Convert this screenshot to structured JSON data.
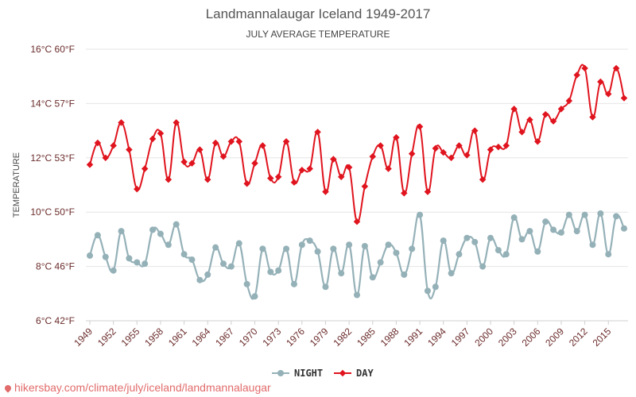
{
  "header": {
    "title": "Landmannalaugar Iceland 1949-2017",
    "subtitle": "JULY AVERAGE TEMPERATURE"
  },
  "footer": {
    "watermark": "hikersbay.com/climate/july/iceland/landmannalaugar"
  },
  "colors": {
    "night": "#95b1b8",
    "day": "#e0141e",
    "grid": "#e6e6e6",
    "axis_text": "#6b2b2b"
  },
  "chart_data": {
    "type": "line",
    "title": "Landmannalaugar Iceland 1949-2017",
    "subtitle": "JULY AVERAGE TEMPERATURE",
    "ylabel": "TEMPERATURE",
    "xlabel": "",
    "ylim": [
      6,
      16
    ],
    "y_ticks": [
      {
        "value": 6,
        "label": "6°C 42°F"
      },
      {
        "value": 8,
        "label": "8°C 46°F"
      },
      {
        "value": 10,
        "label": "10°C 50°F"
      },
      {
        "value": 12,
        "label": "12°C 53°F"
      },
      {
        "value": 14,
        "label": "14°C 57°F"
      },
      {
        "value": 16,
        "label": "16°C 60°F"
      }
    ],
    "x": [
      1949,
      1950,
      1951,
      1952,
      1953,
      1954,
      1955,
      1956,
      1957,
      1958,
      1959,
      1960,
      1961,
      1962,
      1963,
      1964,
      1965,
      1966,
      1967,
      1968,
      1969,
      1970,
      1971,
      1972,
      1973,
      1974,
      1975,
      1976,
      1977,
      1978,
      1979,
      1980,
      1981,
      1982,
      1983,
      1984,
      1985,
      1986,
      1987,
      1988,
      1989,
      1990,
      1991,
      1992,
      1993,
      1994,
      1995,
      1996,
      1997,
      1998,
      1999,
      2000,
      2001,
      2002,
      2003,
      2004,
      2005,
      2006,
      2007,
      2008,
      2009,
      2010,
      2011,
      2012,
      2013,
      2014,
      2015,
      2016,
      2017
    ],
    "x_tick_labels": [
      "1949",
      "1952",
      "1955",
      "1958",
      "1961",
      "1964",
      "1967",
      "1970",
      "1973",
      "1976",
      "1979",
      "1982",
      "1985",
      "1988",
      "1991",
      "1994",
      "1997",
      "2000",
      "2003",
      "2006",
      "2009",
      "2012",
      "2015"
    ],
    "legend": [
      {
        "name": "NIGHT",
        "position": "bottom"
      },
      {
        "name": "DAY",
        "position": "bottom"
      }
    ],
    "series": [
      {
        "name": "NIGHT",
        "values": [
          8.4,
          9.15,
          8.35,
          7.85,
          9.3,
          8.3,
          8.15,
          8.1,
          9.35,
          9.2,
          8.8,
          9.55,
          8.45,
          8.25,
          7.5,
          7.7,
          8.7,
          8.1,
          8.0,
          8.85,
          7.35,
          6.9,
          8.65,
          7.8,
          7.85,
          8.65,
          7.35,
          8.8,
          8.95,
          8.55,
          7.25,
          8.65,
          7.75,
          8.8,
          6.95,
          8.75,
          7.6,
          8.15,
          8.8,
          8.5,
          7.7,
          8.65,
          9.9,
          7.1,
          7.25,
          8.95,
          7.75,
          8.45,
          9.05,
          8.9,
          8.0,
          9.05,
          8.6,
          8.45,
          9.8,
          9.0,
          9.3,
          8.55,
          9.65,
          9.35,
          9.25,
          9.9,
          9.3,
          9.9,
          8.8,
          9.95,
          8.45,
          9.85,
          9.4
        ]
      },
      {
        "name": "DAY",
        "values": [
          11.75,
          12.55,
          12.0,
          12.45,
          13.3,
          12.3,
          10.85,
          11.6,
          12.7,
          12.9,
          11.2,
          13.3,
          11.85,
          11.8,
          12.3,
          11.2,
          12.55,
          12.05,
          12.6,
          12.6,
          11.05,
          11.8,
          12.45,
          11.25,
          11.3,
          12.6,
          11.1,
          11.55,
          11.6,
          12.95,
          10.75,
          11.95,
          11.3,
          11.65,
          9.65,
          10.95,
          12.05,
          12.45,
          11.6,
          12.75,
          10.7,
          12.15,
          13.15,
          10.75,
          12.35,
          12.2,
          12.0,
          12.45,
          12.1,
          13.0,
          11.2,
          12.3,
          12.4,
          12.45,
          13.8,
          12.95,
          13.4,
          12.6,
          13.6,
          13.35,
          13.8,
          14.1,
          15.05,
          15.3,
          13.5,
          14.8,
          14.35,
          15.3,
          14.2
        ]
      }
    ]
  }
}
